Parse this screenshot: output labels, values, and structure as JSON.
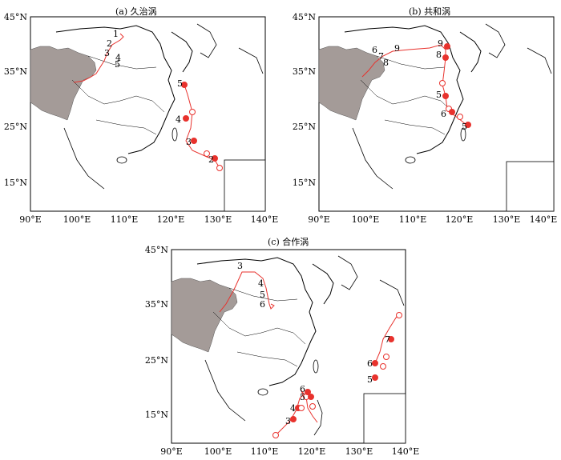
{
  "panels": [
    {
      "id": "a",
      "title": "(a) 久治涡",
      "x_ticks": [
        "90°E",
        "100°E",
        "110°E",
        "120°E",
        "130°E",
        "140°E"
      ],
      "y_ticks": [
        "45°N",
        "35°N",
        "25°N",
        "15°N"
      ],
      "track_labels": [
        "1",
        "2",
        "3",
        "4",
        "5",
        "2",
        "3",
        "4",
        "5"
      ]
    },
    {
      "id": "b",
      "title": "(b) 共和涡",
      "x_ticks": [
        "90°E",
        "100°E",
        "110°E",
        "120°E",
        "130°E",
        "140°E"
      ],
      "y_ticks": [
        "45°N",
        "35°N",
        "25°N",
        "15°N"
      ],
      "track_labels": [
        "6",
        "7",
        "8",
        "9",
        "9",
        "8",
        "5",
        "6",
        "5"
      ]
    },
    {
      "id": "c",
      "title": "(c) 合作涡",
      "x_ticks": [
        "90°E",
        "100°E",
        "110°E",
        "120°E",
        "130°E",
        "140°E"
      ],
      "y_ticks": [
        "45°N",
        "35°N",
        "25°N",
        "15°N"
      ],
      "track_labels": [
        "3",
        "4",
        "5",
        "6",
        "3",
        "4",
        "5",
        "6",
        "5",
        "6",
        "7"
      ]
    }
  ],
  "colors": {
    "track": "#e8322d",
    "plateau": "#a49b98",
    "border": "#000000"
  }
}
